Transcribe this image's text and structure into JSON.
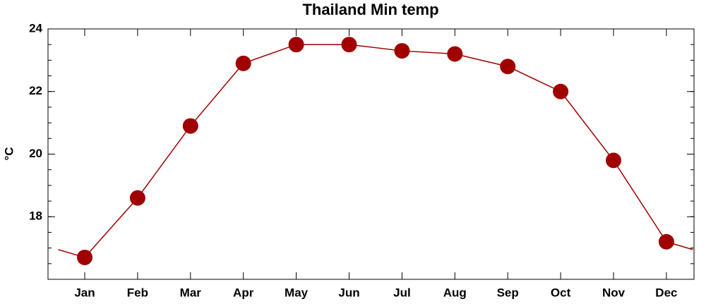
{
  "chart_data": {
    "type": "line",
    "title": "Thailand Min temp",
    "y_label": "°C",
    "categories": [
      "Jan",
      "Feb",
      "Mar",
      "Apr",
      "May",
      "Jun",
      "Jul",
      "Aug",
      "Sep",
      "Oct",
      "Nov",
      "Dec"
    ],
    "values": [
      16.7,
      18.6,
      20.9,
      22.9,
      23.5,
      23.5,
      23.3,
      23.2,
      22.8,
      22.0,
      19.8,
      17.2
    ],
    "color": "#a00000",
    "ylim": [
      16,
      24
    ],
    "yticks": [
      18,
      20,
      22,
      24
    ],
    "y_minor_step": 0.5
  }
}
